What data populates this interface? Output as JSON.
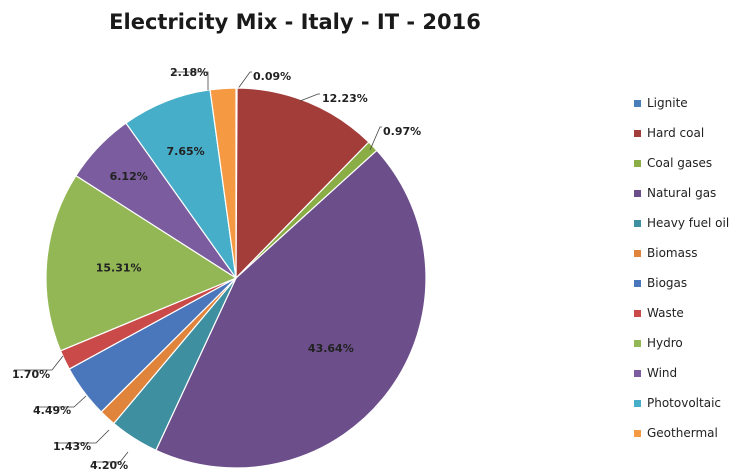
{
  "chart_data": {
    "type": "pie",
    "title": "Electricity Mix - Italy - IT - 2016",
    "legend_position": "right",
    "slices": [
      {
        "label": "Lignite",
        "value": 0.09,
        "value_label": "0.09%",
        "color": "#4a7ebb"
      },
      {
        "label": "Hard coal",
        "value": 12.23,
        "value_label": "12.23%",
        "color": "#a33d3a"
      },
      {
        "label": "Coal gases",
        "value": 0.97,
        "value_label": "0.97%",
        "color": "#8aad45"
      },
      {
        "label": "Natural gas",
        "value": 43.64,
        "value_label": "43.64%",
        "color": "#6b4e8a"
      },
      {
        "label": "Heavy fuel oil",
        "value": 4.2,
        "value_label": "4.20%",
        "color": "#3e8fa0"
      },
      {
        "label": "Biomass",
        "value": 1.43,
        "value_label": "1.43%",
        "color": "#e0843c"
      },
      {
        "label": "Biogas",
        "value": 4.49,
        "value_label": "4.49%",
        "color": "#4a77bb"
      },
      {
        "label": "Waste",
        "value": 1.7,
        "value_label": "1.70%",
        "color": "#c94a48"
      },
      {
        "label": "Hydro",
        "value": 15.31,
        "value_label": "15.31%",
        "color": "#93b755"
      },
      {
        "label": "Wind",
        "value": 6.12,
        "value_label": "6.12%",
        "color": "#7b5c9e"
      },
      {
        "label": "Photovoltaic",
        "value": 7.65,
        "value_label": "7.65%",
        "color": "#46aec9"
      },
      {
        "label": "Geothermal",
        "value": 2.18,
        "value_label": "2.18%",
        "color": "#f59a42"
      }
    ]
  }
}
